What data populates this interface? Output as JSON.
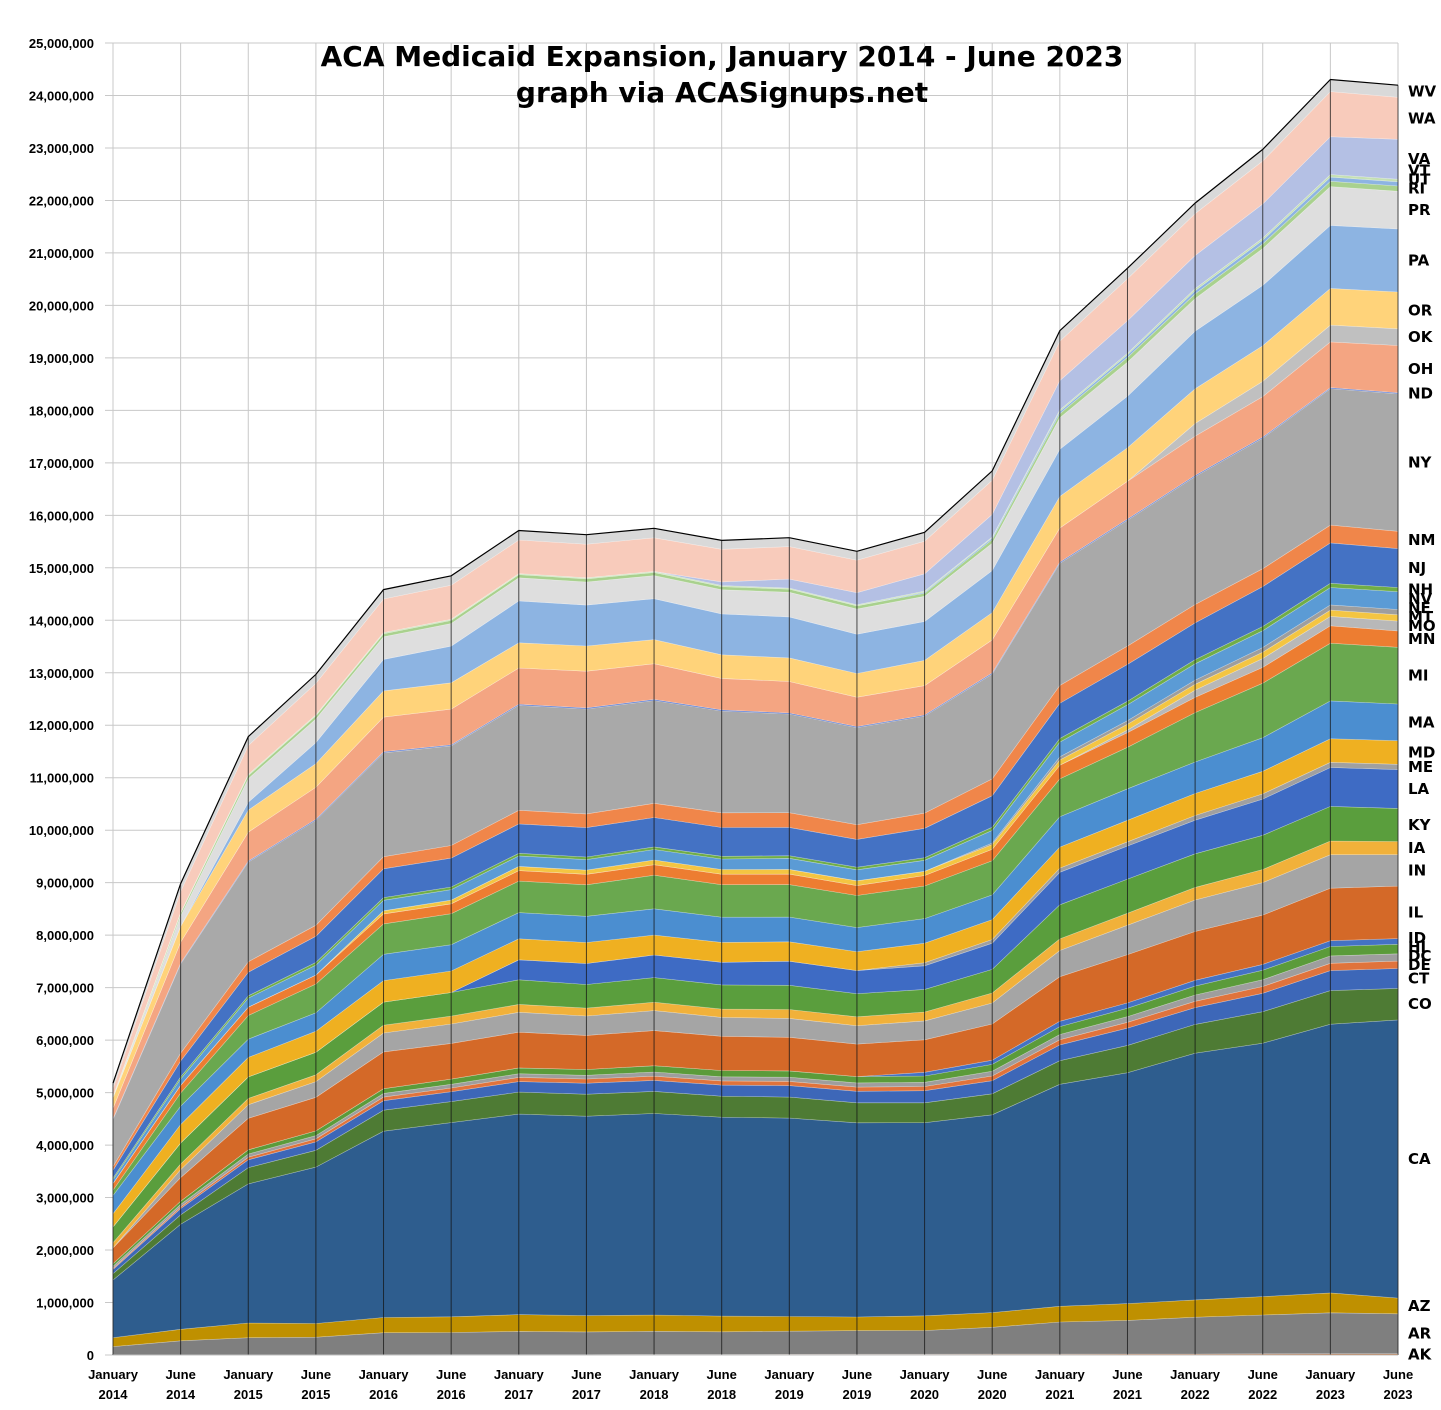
{
  "chart_data": {
    "type": "area",
    "stacked": true,
    "title": "ACA Medicaid Expansion, January 2014 - June 2023",
    "subtitle": "graph via ACASignups.net",
    "xlabel": "",
    "ylabel": "",
    "ylim": [
      0,
      25000000
    ],
    "y_ticks": [
      "0",
      "1,000,000",
      "2,000,000",
      "3,000,000",
      "4,000,000",
      "5,000,000",
      "6,000,000",
      "7,000,000",
      "8,000,000",
      "9,000,000",
      "10,000,000",
      "11,000,000",
      "12,000,000",
      "13,000,000",
      "14,000,000",
      "15,000,000",
      "16,000,000",
      "17,000,000",
      "18,000,000",
      "19,000,000",
      "20,000,000",
      "21,000,000",
      "22,000,000",
      "23,000,000",
      "24,000,000",
      "25,000,000"
    ],
    "y_tick_values": [
      0,
      1000000,
      2000000,
      3000000,
      4000000,
      5000000,
      6000000,
      7000000,
      8000000,
      9000000,
      10000000,
      11000000,
      12000000,
      13000000,
      14000000,
      15000000,
      16000000,
      17000000,
      18000000,
      19000000,
      20000000,
      21000000,
      22000000,
      23000000,
      24000000,
      25000000
    ],
    "x_ticks": [
      [
        "January",
        "2014"
      ],
      [
        "June",
        "2014"
      ],
      [
        "January",
        "2015"
      ],
      [
        "June",
        "2015"
      ],
      [
        "January",
        "2016"
      ],
      [
        "June",
        "2016"
      ],
      [
        "January",
        "2017"
      ],
      [
        "June",
        "2017"
      ],
      [
        "January",
        "2018"
      ],
      [
        "June",
        "2018"
      ],
      [
        "January",
        "2019"
      ],
      [
        "June",
        "2019"
      ],
      [
        "January",
        "2020"
      ],
      [
        "June",
        "2020"
      ],
      [
        "January",
        "2021"
      ],
      [
        "June",
        "2021"
      ],
      [
        "January",
        "2022"
      ],
      [
        "June",
        "2022"
      ],
      [
        "January",
        "2023"
      ],
      [
        "June",
        "2023"
      ]
    ],
    "grid": true,
    "legend": "labels at right edge",
    "units": "enrollees",
    "value_scale": "thousands",
    "series": [
      {
        "name": "AK",
        "color": "#c0703a",
        "values": [
          0,
          0,
          0,
          0,
          5,
          8,
          10,
          10,
          12,
          12,
          14,
          15,
          16,
          17,
          18,
          19,
          20,
          22,
          24,
          25
        ]
      },
      {
        "name": "AR",
        "color": "#7f7f7f",
        "values": [
          160,
          270,
          330,
          340,
          420,
          420,
          440,
          430,
          440,
          430,
          440,
          450,
          450,
          510,
          610,
          640,
          700,
          740,
          780,
          760
        ]
      },
      {
        "name": "AZ",
        "color": "#bf9000",
        "values": [
          170,
          220,
          280,
          260,
          290,
          300,
          320,
          310,
          310,
          300,
          280,
          260,
          280,
          280,
          300,
          320,
          330,
          350,
          380,
          300
        ]
      },
      {
        "name": "CA",
        "color": "#2e5d8e",
        "values": [
          1100,
          2000,
          2650,
          2980,
          3550,
          3700,
          3820,
          3800,
          3840,
          3790,
          3780,
          3700,
          3680,
          3770,
          4230,
          4400,
          4700,
          4830,
          5120,
          5300
        ]
      },
      {
        "name": "CO",
        "color": "#4e7b34",
        "values": [
          120,
          180,
          310,
          320,
          400,
          400,
          420,
          420,
          420,
          400,
          400,
          380,
          380,
          400,
          450,
          520,
          550,
          600,
          640,
          600
        ]
      },
      {
        "name": "CT",
        "color": "#3d67b8",
        "values": [
          80,
          120,
          150,
          160,
          180,
          190,
          200,
          210,
          210,
          210,
          220,
          220,
          230,
          250,
          300,
          330,
          320,
          350,
          380,
          380
        ]
      },
      {
        "name": "DE",
        "color": "#e0733c",
        "values": [
          20,
          30,
          50,
          60,
          70,
          70,
          80,
          80,
          80,
          80,
          80,
          80,
          80,
          90,
          100,
          110,
          120,
          130,
          140,
          140
        ]
      },
      {
        "name": "DC",
        "color": "#9e9e9e",
        "values": [
          40,
          50,
          60,
          60,
          70,
          70,
          70,
          70,
          80,
          80,
          80,
          80,
          80,
          90,
          100,
          110,
          120,
          130,
          140,
          140
        ]
      },
      {
        "name": "HI",
        "color": "#5b9b3a",
        "values": [
          50,
          60,
          80,
          90,
          90,
          100,
          110,
          110,
          120,
          120,
          120,
          120,
          120,
          130,
          150,
          160,
          170,
          180,
          180,
          180
        ]
      },
      {
        "name": "ID",
        "color": "#4472c4",
        "values": [
          0,
          0,
          0,
          0,
          0,
          0,
          0,
          0,
          0,
          0,
          0,
          0,
          70,
          80,
          100,
          100,
          110,
          110,
          110,
          110
        ]
      },
      {
        "name": "IL",
        "color": "#d46928",
        "values": [
          300,
          450,
          600,
          640,
          700,
          680,
          680,
          650,
          670,
          650,
          640,
          620,
          620,
          690,
          850,
          920,
          930,
          940,
          1000,
          1000
        ]
      },
      {
        "name": "IN",
        "color": "#a5a5a5",
        "values": [
          0,
          150,
          260,
          300,
          360,
          370,
          380,
          370,
          380,
          360,
          360,
          350,
          360,
          400,
          500,
          560,
          600,
          620,
          640,
          600
        ]
      },
      {
        "name": "IA",
        "color": "#f1b13a",
        "values": [
          100,
          110,
          120,
          130,
          150,
          150,
          150,
          150,
          160,
          160,
          170,
          170,
          170,
          190,
          220,
          230,
          240,
          250,
          260,
          250
        ]
      },
      {
        "name": "KY",
        "color": "#5a9e3d",
        "values": [
          300,
          400,
          410,
          430,
          440,
          450,
          470,
          450,
          470,
          460,
          460,
          440,
          430,
          450,
          650,
          650,
          640,
          650,
          660,
          630
        ]
      },
      {
        "name": "LA",
        "color": "#3e6bc4",
        "values": [
          0,
          0,
          0,
          0,
          0,
          0,
          380,
          400,
          430,
          430,
          460,
          440,
          450,
          500,
          620,
          630,
          640,
          690,
          740,
          740
        ]
      },
      {
        "name": "ME",
        "color": "#a0a0a0",
        "values": [
          0,
          0,
          0,
          0,
          0,
          0,
          0,
          0,
          0,
          0,
          0,
          0,
          60,
          70,
          80,
          80,
          90,
          100,
          100,
          100
        ]
      },
      {
        "name": "MD",
        "color": "#efb021",
        "values": [
          250,
          350,
          370,
          400,
          410,
          410,
          400,
          400,
          380,
          380,
          370,
          360,
          370,
          380,
          400,
          410,
          420,
          430,
          450,
          450
        ]
      },
      {
        "name": "MA",
        "color": "#4b8ed0",
        "values": [
          350,
          350,
          350,
          350,
          500,
          500,
          500,
          500,
          500,
          480,
          470,
          460,
          470,
          470,
          580,
          600,
          600,
          640,
          720,
          700
        ]
      },
      {
        "name": "MI",
        "color": "#6aa84f",
        "values": [
          100,
          250,
          450,
          550,
          580,
          590,
          600,
          600,
          640,
          620,
          620,
          610,
          620,
          650,
          720,
          790,
          940,
          1040,
          1100,
          1080
        ]
      },
      {
        "name": "MN",
        "color": "#ed7d31",
        "values": [
          130,
          150,
          160,
          170,
          190,
          190,
          200,
          200,
          200,
          200,
          200,
          190,
          200,
          220,
          260,
          280,
          290,
          300,
          330,
          310
        ]
      },
      {
        "name": "MO",
        "color": "#b8b8b8",
        "values": [
          0,
          0,
          0,
          0,
          0,
          0,
          0,
          0,
          0,
          0,
          0,
          0,
          0,
          0,
          0,
          50,
          140,
          170,
          180,
          190
        ]
      },
      {
        "name": "MT",
        "color": "#f4c542",
        "values": [
          0,
          0,
          0,
          0,
          60,
          70,
          80,
          80,
          90,
          90,
          90,
          90,
          80,
          90,
          100,
          110,
          110,
          120,
          120,
          120
        ]
      },
      {
        "name": "NE",
        "color": "#9e9e9e",
        "values": [
          0,
          0,
          0,
          0,
          0,
          0,
          0,
          0,
          0,
          0,
          0,
          0,
          0,
          30,
          60,
          70,
          80,
          90,
          100,
          100
        ]
      },
      {
        "name": "NV",
        "color": "#5b9bd5",
        "values": [
          70,
          120,
          170,
          190,
          200,
          200,
          200,
          200,
          200,
          200,
          210,
          210,
          210,
          240,
          280,
          300,
          310,
          320,
          330,
          340
        ]
      },
      {
        "name": "NH",
        "color": "#70ad47",
        "values": [
          30,
          40,
          45,
          50,
          50,
          50,
          50,
          50,
          50,
          50,
          50,
          50,
          50,
          60,
          70,
          70,
          80,
          80,
          80,
          80
        ]
      },
      {
        "name": "NJ",
        "color": "#4472c4",
        "values": [
          150,
          300,
          450,
          500,
          550,
          550,
          560,
          560,
          560,
          550,
          540,
          530,
          560,
          600,
          670,
          700,
          700,
          760,
          770,
          740
        ]
      },
      {
        "name": "NM",
        "color": "#f0864a",
        "values": [
          70,
          150,
          200,
          210,
          230,
          240,
          260,
          260,
          270,
          280,
          280,
          280,
          290,
          320,
          340,
          350,
          350,
          340,
          340,
          330
        ]
      },
      {
        "name": "NY",
        "color": "#a9a9a9",
        "values": [
          900,
          1700,
          1900,
          2000,
          1980,
          1900,
          2000,
          2000,
          1960,
          1940,
          1880,
          1850,
          1850,
          2000,
          2330,
          2400,
          2440,
          2490,
          2600,
          2620
        ]
      },
      {
        "name": "ND",
        "color": "#4a6fd0",
        "values": [
          10,
          15,
          18,
          19,
          20,
          20,
          20,
          20,
          20,
          20,
          20,
          20,
          20,
          20,
          20,
          20,
          20,
          20,
          20,
          20
        ]
      },
      {
        "name": "OH",
        "color": "#f4a582",
        "values": [
          200,
          400,
          550,
          610,
          660,
          680,
          690,
          700,
          680,
          600,
          600,
          560,
          560,
          630,
          650,
          720,
          750,
          770,
          870,
          900
        ]
      },
      {
        "name": "OK",
        "color": "#c0c0c0",
        "values": [
          0,
          0,
          0,
          0,
          0,
          0,
          0,
          0,
          0,
          0,
          0,
          0,
          0,
          0,
          0,
          0,
          240,
          290,
          320,
          320
        ]
      },
      {
        "name": "OR",
        "color": "#ffd37a",
        "values": [
          200,
          300,
          420,
          450,
          500,
          500,
          480,
          480,
          460,
          450,
          450,
          450,
          480,
          520,
          600,
          640,
          660,
          680,
          700,
          700
        ]
      },
      {
        "name": "PA",
        "color": "#8db4e2",
        "values": [
          0,
          0,
          150,
          400,
          600,
          700,
          800,
          780,
          780,
          780,
          780,
          750,
          740,
          800,
          900,
          980,
          1100,
          1150,
          1200,
          1200
        ]
      },
      {
        "name": "PR",
        "color": "#dedede",
        "values": [
          0,
          200,
          450,
          450,
          430,
          430,
          440,
          440,
          440,
          460,
          470,
          480,
          480,
          520,
          600,
          650,
          620,
          700,
          740,
          720
        ]
      },
      {
        "name": "RI",
        "color": "#a9d18e",
        "values": [
          20,
          50,
          60,
          60,
          60,
          60,
          60,
          60,
          60,
          60,
          60,
          60,
          60,
          70,
          80,
          90,
          90,
          90,
          100,
          100
        ]
      },
      {
        "name": "UT",
        "color": "#8db4e2",
        "values": [
          0,
          0,
          0,
          0,
          0,
          0,
          0,
          0,
          0,
          0,
          0,
          0,
          20,
          30,
          40,
          50,
          60,
          70,
          80,
          80
        ]
      },
      {
        "name": "VT",
        "color": "#c5e0b4",
        "values": [
          10,
          15,
          20,
          20,
          20,
          20,
          20,
          20,
          20,
          20,
          20,
          20,
          20,
          20,
          30,
          30,
          40,
          40,
          50,
          50
        ]
      },
      {
        "name": "VA",
        "color": "#b4c0e4",
        "values": [
          0,
          0,
          0,
          0,
          0,
          0,
          0,
          0,
          0,
          70,
          170,
          230,
          330,
          430,
          560,
          620,
          630,
          650,
          720,
          760
        ]
      },
      {
        "name": "WA",
        "color": "#f8cbbb",
        "values": [
          150,
          400,
          550,
          600,
          640,
          650,
          640,
          640,
          640,
          620,
          620,
          620,
          620,
          650,
          750,
          800,
          800,
          820,
          860,
          800
        ]
      },
      {
        "name": "WV",
        "color": "#d9d9d9",
        "values": [
          100,
          150,
          170,
          170,
          180,
          180,
          180,
          180,
          180,
          170,
          170,
          170,
          170,
          180,
          200,
          200,
          200,
          220,
          230,
          230
        ]
      }
    ]
  }
}
